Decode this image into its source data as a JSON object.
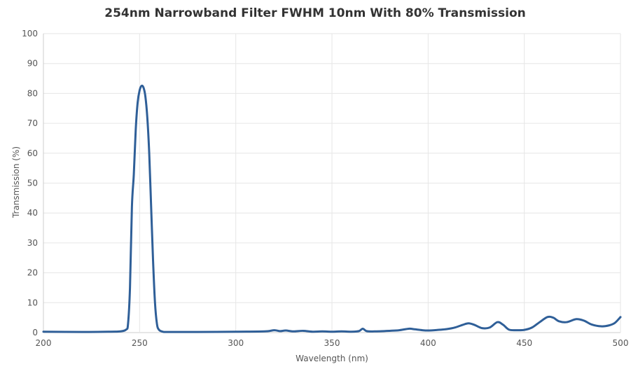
{
  "chart_data": {
    "type": "line",
    "title": "254nm Narrowband Filter FWHM 10nm With 80% Transmission",
    "xlabel": "Wavelength (nm)",
    "ylabel": "Transmission (%)",
    "xlim": [
      200,
      500
    ],
    "ylim": [
      0,
      100
    ],
    "xticks": [
      "200",
      "250",
      "300",
      "350",
      "400",
      "450",
      "500"
    ],
    "yticks": [
      "0",
      "10",
      "20",
      "30",
      "40",
      "50",
      "60",
      "70",
      "80",
      "90",
      "100"
    ],
    "grid": true,
    "line_color": "#2f5f98",
    "series": [
      {
        "x": [
          200,
          220,
          235,
          240,
          243,
          244,
          245,
          246,
          247,
          248,
          249,
          250,
          251,
          252,
          253,
          254,
          255,
          256,
          257,
          258,
          259,
          260,
          262,
          265,
          280,
          300,
          315,
          320,
          323,
          326,
          330,
          335,
          340,
          345,
          350,
          355,
          360,
          364,
          366,
          368,
          372,
          380,
          385,
          390,
          393,
          397,
          400,
          405,
          410,
          414,
          418,
          421,
          424,
          428,
          432,
          436,
          439,
          442,
          446,
          450,
          454,
          458,
          462,
          465,
          468,
          472,
          477,
          481,
          485,
          490,
          494,
          497,
          500
        ],
        "y": [
          0.3,
          0.2,
          0.3,
          0.4,
          1.0,
          3.0,
          15.0,
          42.0,
          53.0,
          68.0,
          77.0,
          81.0,
          82.5,
          82.0,
          79.0,
          72.0,
          60.0,
          42.0,
          24.0,
          10.0,
          3.0,
          1.0,
          0.3,
          0.2,
          0.2,
          0.3,
          0.4,
          0.8,
          0.5,
          0.7,
          0.4,
          0.6,
          0.3,
          0.4,
          0.3,
          0.4,
          0.3,
          0.5,
          1.3,
          0.5,
          0.4,
          0.6,
          0.8,
          1.3,
          1.1,
          0.8,
          0.7,
          0.9,
          1.2,
          1.7,
          2.6,
          3.1,
          2.6,
          1.5,
          1.7,
          3.5,
          2.6,
          1.0,
          0.8,
          0.9,
          1.7,
          3.5,
          5.2,
          5.0,
          3.8,
          3.5,
          4.5,
          4.0,
          2.7,
          2.1,
          2.4,
          3.2,
          5.2
        ]
      }
    ]
  }
}
